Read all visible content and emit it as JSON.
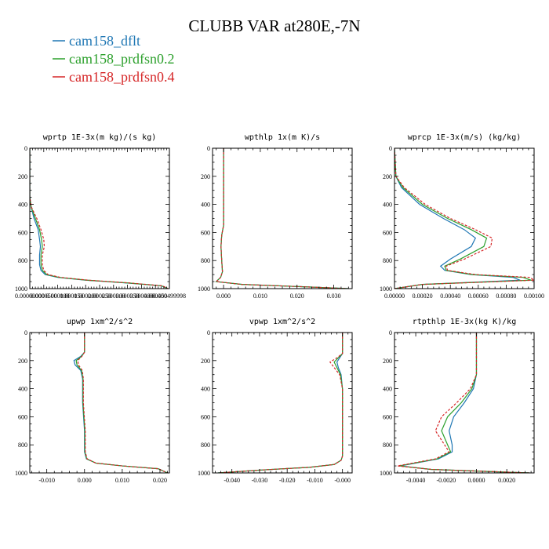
{
  "title": "CLUBB VAR at280E,-7N",
  "legend": [
    {
      "label": "cam158_dflt",
      "color": "#1f77b4",
      "dash": "solid"
    },
    {
      "label": "cam158_prdfsn0.2",
      "color": "#2ca02c",
      "dash": "solid"
    },
    {
      "label": "cam158_prdfsn0.4",
      "color": "#d62728",
      "dash": "dash"
    }
  ],
  "chart_data": [
    {
      "type": "line",
      "title": "wprtp  1E-3x(m kg)/(s kg)",
      "xlim": [
        0,
        0.0005
      ],
      "ylim": [
        1000,
        0
      ],
      "yticks": [
        {
          "v": 0,
          "label": "0"
        },
        {
          "v": 200,
          "label": "200"
        },
        {
          "v": 400,
          "label": "400"
        },
        {
          "v": 600,
          "label": "600"
        },
        {
          "v": 800,
          "label": "800"
        },
        {
          "v": 1000,
          "label": "1000"
        }
      ],
      "xticks": [
        {
          "v": 0.0,
          "label": "0.00000000"
        },
        {
          "v": 5e-05,
          "label": "0.0000500"
        },
        {
          "v": 0.0001,
          "label": "0.000100"
        },
        {
          "v": 0.00015,
          "label": "0.000150"
        },
        {
          "v": 0.0002,
          "label": "0.000200"
        },
        {
          "v": 0.00025,
          "label": "0.000250"
        },
        {
          "v": 0.0003,
          "label": "0.000300"
        },
        {
          "v": 0.00035,
          "label": "0.000350"
        },
        {
          "v": 0.0004,
          "label": "0.000400"
        },
        {
          "v": 0.00045,
          "label": "0.000450"
        },
        {
          "v": 0.0005,
          "label": "0.000499998"
        }
      ],
      "series": [
        {
          "name": "cam158_dflt",
          "x": [
            0,
            0,
            5e-06,
            1.5e-05,
            3e-05,
            3.5e-05,
            3.8e-05,
            3.5e-05,
            3.5e-05,
            4e-05,
            5.5e-05,
            0.0001,
            0.0002,
            0.00035,
            0.00047,
            0.000495
          ],
          "y": [
            0,
            350,
            420,
            500,
            580,
            650,
            700,
            760,
            830,
            870,
            900,
            920,
            940,
            960,
            980,
            1000
          ]
        },
        {
          "name": "cam158_prdfsn0.2",
          "x": [
            0,
            0,
            5e-06,
            2e-05,
            3.5e-05,
            4.2e-05,
            4.5e-05,
            4e-05,
            4e-05,
            4.5e-05,
            6e-05,
            0.000105,
            0.000205,
            0.000355,
            0.000472,
            0.000495
          ],
          "y": [
            0,
            350,
            420,
            500,
            580,
            650,
            700,
            760,
            830,
            870,
            900,
            920,
            940,
            960,
            980,
            1000
          ]
        },
        {
          "name": "cam158_prdfsn0.4",
          "x": [
            0,
            0,
            6e-06,
            2.5e-05,
            4e-05,
            5e-05,
            5.2e-05,
            4.5e-05,
            4.5e-05,
            5e-05,
            6.5e-05,
            0.00011,
            0.00021,
            0.00036,
            0.000475,
            0.000495
          ],
          "y": [
            0,
            350,
            420,
            500,
            580,
            650,
            700,
            760,
            830,
            870,
            900,
            920,
            940,
            960,
            980,
            1000
          ]
        }
      ]
    },
    {
      "type": "line",
      "title": "wpthlp  1x(m K)/s",
      "xlim": [
        -0.003,
        0.035
      ],
      "ylim": [
        1000,
        0
      ],
      "yticks": [
        {
          "v": 0,
          "label": "0"
        },
        {
          "v": 200,
          "label": "200"
        },
        {
          "v": 400,
          "label": "400"
        },
        {
          "v": 600,
          "label": "600"
        },
        {
          "v": 800,
          "label": "800"
        },
        {
          "v": 1000,
          "label": "1000"
        }
      ],
      "xticks": [
        {
          "v": 0.0,
          "label": "0.000"
        },
        {
          "v": 0.01,
          "label": "0.010"
        },
        {
          "v": 0.02,
          "label": "0.020"
        },
        {
          "v": 0.03,
          "label": "0.030"
        }
      ],
      "series": [
        {
          "name": "cam158_dflt",
          "x": [
            0,
            0,
            -0.0005,
            -0.0007,
            -0.0005,
            -0.0003,
            -0.0008,
            -0.002,
            0.005,
            0.02,
            0.034
          ],
          "y": [
            0,
            550,
            620,
            700,
            800,
            880,
            920,
            950,
            970,
            985,
            1000
          ]
        },
        {
          "name": "cam158_prdfsn0.2",
          "x": [
            0,
            0,
            -0.0005,
            -0.0007,
            -0.0005,
            -0.0003,
            -0.0008,
            -0.002,
            0.005,
            0.02,
            0.034
          ],
          "y": [
            0,
            550,
            620,
            700,
            800,
            880,
            920,
            950,
            970,
            985,
            1000
          ]
        },
        {
          "name": "cam158_prdfsn0.4",
          "x": [
            0,
            0,
            -0.0005,
            -0.0007,
            -0.0005,
            -0.0003,
            -0.0008,
            -0.002,
            0.005,
            0.02,
            0.034
          ],
          "y": [
            0,
            550,
            620,
            700,
            800,
            880,
            920,
            950,
            970,
            985,
            1000
          ]
        }
      ]
    },
    {
      "type": "line",
      "title": "wprcp  1E-3x(m/s) (kg/kg)",
      "xlim": [
        0,
        0.001
      ],
      "ylim": [
        1000,
        0
      ],
      "yticks": [
        {
          "v": 0,
          "label": "0"
        },
        {
          "v": 200,
          "label": "200"
        },
        {
          "v": 400,
          "label": "400"
        },
        {
          "v": 600,
          "label": "600"
        },
        {
          "v": 800,
          "label": "800"
        },
        {
          "v": 1000,
          "label": "1000"
        }
      ],
      "xticks": [
        {
          "v": 0.0,
          "label": "0.00000"
        },
        {
          "v": 0.0002,
          "label": "0.00020"
        },
        {
          "v": 0.0004,
          "label": "0.00040"
        },
        {
          "v": 0.0006,
          "label": "0.00060"
        },
        {
          "v": 0.0008,
          "label": "0.00080"
        },
        {
          "v": 0.001,
          "label": "0.00100"
        }
      ],
      "series": [
        {
          "name": "cam158_dflt",
          "x": [
            0,
            1e-05,
            5e-05,
            0.00018,
            0.00035,
            0.0005,
            0.00058,
            0.00055,
            0.0004,
            0.00033,
            0.00036,
            0.00055,
            0.00085,
            0.0009,
            0.0002,
            0
          ],
          "y": [
            0,
            200,
            280,
            400,
            500,
            580,
            640,
            700,
            790,
            840,
            870,
            900,
            920,
            940,
            970,
            1000
          ]
        },
        {
          "name": "cam158_prdfsn0.2",
          "x": [
            0,
            1e-05,
            6e-05,
            0.0002,
            0.00038,
            0.00055,
            0.00066,
            0.00064,
            0.00047,
            0.00036,
            0.00037,
            0.00056,
            0.00092,
            0.00098,
            0.0002,
            0
          ],
          "y": [
            0,
            200,
            280,
            400,
            500,
            580,
            640,
            700,
            790,
            840,
            870,
            900,
            920,
            940,
            970,
            1000
          ]
        },
        {
          "name": "cam158_prdfsn0.4",
          "x": [
            0,
            1e-05,
            7e-05,
            0.00022,
            0.0004,
            0.00058,
            0.0007,
            0.00069,
            0.0005,
            0.00037,
            0.00038,
            0.00058,
            0.00097,
            0.001,
            0.0002,
            0
          ],
          "y": [
            0,
            200,
            280,
            400,
            500,
            580,
            640,
            700,
            790,
            840,
            870,
            900,
            920,
            940,
            970,
            1000
          ]
        }
      ]
    },
    {
      "type": "line",
      "title": "upwp  1xm^2/s^2",
      "xlim": [
        -0.0145,
        0.0225
      ],
      "ylim": [
        1000,
        0
      ],
      "yticks": [
        {
          "v": 0,
          "label": "0"
        },
        {
          "v": 200,
          "label": "200"
        },
        {
          "v": 400,
          "label": "400"
        },
        {
          "v": 600,
          "label": "600"
        },
        {
          "v": 800,
          "label": "800"
        },
        {
          "v": 1000,
          "label": "1000"
        }
      ],
      "xticks": [
        {
          "v": -0.01,
          "label": "-0.010"
        },
        {
          "v": 0.0,
          "label": "0.000"
        },
        {
          "v": 0.01,
          "label": "0.010"
        },
        {
          "v": 0.02,
          "label": "0.020"
        }
      ],
      "series": [
        {
          "name": "cam158_dflt",
          "x": [
            0,
            0,
            -0.001,
            -0.0028,
            -0.0025,
            -0.001,
            -0.0005,
            -0.0005,
            0,
            0,
            0.0005,
            0.003,
            0.01,
            0.0195,
            0.022
          ],
          "y": [
            0,
            140,
            170,
            200,
            230,
            270,
            330,
            500,
            700,
            850,
            900,
            930,
            950,
            970,
            1000
          ]
        },
        {
          "name": "cam158_prdfsn0.2",
          "x": [
            0,
            0,
            -0.0008,
            -0.0022,
            -0.002,
            -0.0008,
            -0.0004,
            -0.0004,
            0.0001,
            0.0001,
            0.0006,
            0.003,
            0.01,
            0.0195,
            0.022
          ],
          "y": [
            0,
            140,
            170,
            200,
            230,
            270,
            330,
            500,
            700,
            850,
            900,
            930,
            950,
            970,
            1000
          ]
        },
        {
          "name": "cam158_prdfsn0.4",
          "x": [
            0,
            0,
            -0.0007,
            -0.0018,
            -0.0016,
            -0.0006,
            -0.0003,
            -0.0003,
            0.0002,
            0.0002,
            0.0007,
            0.003,
            0.01,
            0.0195,
            0.022
          ],
          "y": [
            0,
            140,
            170,
            200,
            230,
            270,
            330,
            500,
            700,
            850,
            900,
            930,
            950,
            970,
            1000
          ]
        }
      ]
    },
    {
      "type": "line",
      "title": "vpwp  1xm^2/s^2",
      "xlim": [
        -0.047,
        0.0035
      ],
      "ylim": [
        1000,
        0
      ],
      "yticks": [
        {
          "v": 0,
          "label": "0"
        },
        {
          "v": 200,
          "label": "200"
        },
        {
          "v": 400,
          "label": "400"
        },
        {
          "v": 600,
          "label": "600"
        },
        {
          "v": 800,
          "label": "800"
        },
        {
          "v": 1000,
          "label": "1000"
        }
      ],
      "xticks": [
        {
          "v": -0.04,
          "label": "-0.040"
        },
        {
          "v": -0.03,
          "label": "-0.030"
        },
        {
          "v": -0.02,
          "label": "-0.020"
        },
        {
          "v": -0.01,
          "label": "-0.010"
        },
        {
          "v": 0.0,
          "label": "-0.000"
        }
      ],
      "series": [
        {
          "name": "cam158_dflt",
          "x": [
            0,
            0,
            -0.001,
            -0.002,
            -0.0015,
            -0.0005,
            0,
            0,
            0,
            -0.0005,
            -0.003,
            -0.012,
            -0.03,
            -0.045
          ],
          "y": [
            0,
            150,
            180,
            210,
            250,
            300,
            400,
            700,
            880,
            910,
            940,
            960,
            980,
            1000
          ]
        },
        {
          "name": "cam158_prdfsn0.2",
          "x": [
            0,
            0,
            -0.0015,
            -0.003,
            -0.002,
            -0.0007,
            0,
            0,
            0,
            -0.0005,
            -0.003,
            -0.012,
            -0.03,
            -0.045
          ],
          "y": [
            0,
            150,
            180,
            210,
            250,
            300,
            400,
            700,
            880,
            910,
            940,
            960,
            980,
            1000
          ]
        },
        {
          "name": "cam158_prdfsn0.4",
          "x": [
            0,
            0,
            -0.002,
            -0.0045,
            -0.003,
            -0.001,
            0,
            0,
            0,
            -0.0005,
            -0.003,
            -0.012,
            -0.03,
            -0.045
          ],
          "y": [
            0,
            150,
            180,
            210,
            250,
            300,
            400,
            700,
            880,
            910,
            940,
            960,
            980,
            1000
          ]
        }
      ]
    },
    {
      "type": "line",
      "title": "rtpthlp  1E-3x(kg K)/kg",
      "xlim": [
        -0.0054,
        0.0038
      ],
      "ylim": [
        1000,
        0
      ],
      "yticks": [
        {
          "v": 0,
          "label": "0"
        },
        {
          "v": 200,
          "label": "200"
        },
        {
          "v": 400,
          "label": "400"
        },
        {
          "v": 600,
          "label": "600"
        },
        {
          "v": 800,
          "label": "800"
        },
        {
          "v": 1000,
          "label": "1000"
        }
      ],
      "xticks": [
        {
          "v": -0.004,
          "label": "-0.0040"
        },
        {
          "v": -0.002,
          "label": "-0.0020"
        },
        {
          "v": 0.0,
          "label": "0.0000"
        },
        {
          "v": 0.002,
          "label": "0.0020"
        }
      ],
      "series": [
        {
          "name": "cam158_dflt",
          "x": [
            0,
            0,
            -0.0002,
            -0.0008,
            -0.0015,
            -0.0018,
            -0.0016,
            -0.0016,
            -0.0025,
            -0.005,
            -0.003,
            0.0035
          ],
          "y": [
            0,
            300,
            400,
            500,
            600,
            700,
            800,
            850,
            900,
            950,
            975,
            1000
          ]
        },
        {
          "name": "cam158_prdfsn0.2",
          "x": [
            0,
            0,
            -0.0003,
            -0.001,
            -0.0019,
            -0.0023,
            -0.0019,
            -0.0017,
            -0.0026,
            -0.0051,
            -0.003,
            0.0035
          ],
          "y": [
            0,
            300,
            400,
            500,
            600,
            700,
            800,
            850,
            900,
            950,
            975,
            1000
          ]
        },
        {
          "name": "cam158_prdfsn0.4",
          "x": [
            0,
            0,
            -0.0004,
            -0.0013,
            -0.0023,
            -0.0027,
            -0.0021,
            -0.0018,
            -0.0027,
            -0.0052,
            -0.003,
            0.0035
          ],
          "y": [
            0,
            300,
            400,
            500,
            600,
            700,
            800,
            850,
            900,
            950,
            975,
            1000
          ]
        }
      ]
    }
  ]
}
